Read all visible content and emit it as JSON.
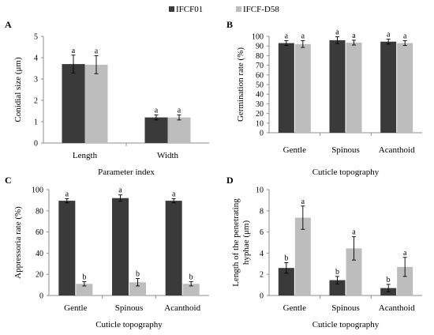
{
  "legend": {
    "position": "top-center",
    "entries": [
      {
        "name": "IFCF01",
        "color": "#3a3a3a"
      },
      {
        "name": "IFCF-D58",
        "color": "#bdbdbd"
      }
    ]
  },
  "chart_data": [
    {
      "panel": "A",
      "type": "bar",
      "categories": [
        "Length",
        "Width"
      ],
      "series": [
        {
          "name": "IFCF01",
          "values": [
            3.7,
            1.2
          ],
          "errors": [
            0.42,
            0.12
          ],
          "labels": [
            "a",
            "a"
          ],
          "color": "#3a3a3a"
        },
        {
          "name": "IFCF-D58",
          "values": [
            3.67,
            1.2
          ],
          "errors": [
            0.42,
            0.12
          ],
          "labels": [
            "a",
            "a"
          ],
          "color": "#bdbdbd"
        }
      ],
      "xlabel": "Parameter index",
      "ylabel": "Conidial size (μm)",
      "ylim": [
        0,
        5
      ],
      "yticks": [
        0,
        1,
        2,
        3,
        4,
        5
      ],
      "grid": false
    },
    {
      "panel": "B",
      "type": "bar",
      "categories": [
        "Gentle",
        "Spinous",
        "Acanthoid"
      ],
      "series": [
        {
          "name": "IFCF01",
          "values": [
            93,
            96,
            94.5
          ],
          "errors": [
            2.5,
            3.5,
            2.5
          ],
          "labels": [
            "a",
            "a",
            "a"
          ],
          "color": "#3a3a3a"
        },
        {
          "name": "IFCF-D58",
          "values": [
            92,
            93.5,
            93
          ],
          "errors": [
            3.5,
            2.5,
            2.5
          ],
          "labels": [
            "a",
            "a",
            "a"
          ],
          "color": "#bdbdbd"
        }
      ],
      "xlabel": "Cuticle topography",
      "ylabel": "Germination rate (%)",
      "ylim": [
        0,
        100
      ],
      "yticks": [
        0,
        10,
        20,
        30,
        40,
        50,
        60,
        70,
        80,
        90,
        100
      ],
      "grid": false
    },
    {
      "panel": "C",
      "type": "bar",
      "categories": [
        "Gentle",
        "Spinous",
        "Acanthoid"
      ],
      "series": [
        {
          "name": "IFCF01",
          "values": [
            89.5,
            92,
            89.5
          ],
          "errors": [
            2,
            3,
            2
          ],
          "labels": [
            "a",
            "a",
            "a"
          ],
          "color": "#3a3a3a"
        },
        {
          "name": "IFCF-D58",
          "values": [
            11,
            12.5,
            11
          ],
          "errors": [
            2,
            3.5,
            2
          ],
          "labels": [
            "b",
            "b",
            "b"
          ],
          "color": "#bdbdbd"
        }
      ],
      "xlabel": "Cuticle topography",
      "ylabel": "Appressoria rate (%)",
      "ylim": [
        0,
        100
      ],
      "yticks": [
        0,
        20,
        40,
        60,
        80,
        100
      ],
      "grid": false
    },
    {
      "panel": "D",
      "type": "bar",
      "categories": [
        "Gentle",
        "Spinous",
        "Acanthoid"
      ],
      "series": [
        {
          "name": "IFCF01",
          "values": [
            2.6,
            1.45,
            0.7
          ],
          "errors": [
            0.5,
            0.35,
            0.35
          ],
          "labels": [
            "b",
            "b",
            "b"
          ],
          "color": "#3a3a3a"
        },
        {
          "name": "IFCF-D58",
          "values": [
            7.35,
            4.45,
            2.7
          ],
          "errors": [
            1.1,
            1.1,
            0.9
          ],
          "labels": [
            "a",
            "a",
            "a"
          ],
          "color": "#bdbdbd"
        }
      ],
      "xlabel": "Cuticle topography",
      "ylabel": "Length of the penetrating hyphae (μm)",
      "ylim": [
        0,
        10
      ],
      "yticks": [
        0,
        2,
        4,
        6,
        8,
        10
      ],
      "grid": false
    }
  ]
}
